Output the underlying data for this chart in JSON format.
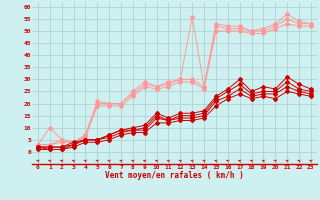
{
  "bg_color": "#cff0f0",
  "grid_color": "#aacccc",
  "xlabel": "Vent moyen/en rafales ( km/h )",
  "xlabel_color": "#cc0000",
  "tick_color": "#cc0000",
  "x_ticks": [
    0,
    1,
    2,
    3,
    4,
    5,
    6,
    7,
    8,
    9,
    10,
    11,
    12,
    13,
    14,
    15,
    16,
    17,
    18,
    19,
    20,
    21,
    22,
    23
  ],
  "y_ticks": [
    0,
    5,
    10,
    15,
    20,
    25,
    30,
    35,
    40,
    45,
    50,
    55,
    60
  ],
  "ylim": [
    -5,
    62
  ],
  "xlim": [
    -0.5,
    23.5
  ],
  "series_light": [
    [
      3,
      10,
      5,
      4,
      7,
      21,
      20,
      20,
      25,
      29,
      27,
      29,
      30,
      56,
      27,
      53,
      52,
      52,
      50,
      51,
      53,
      57,
      54,
      53
    ],
    [
      3,
      3,
      5,
      4,
      7,
      20,
      20,
      20,
      24,
      28,
      27,
      28,
      30,
      30,
      27,
      52,
      51,
      51,
      50,
      50,
      52,
      55,
      53,
      53
    ],
    [
      3,
      3,
      4,
      4,
      6,
      19,
      19,
      19,
      23,
      27,
      26,
      27,
      29,
      29,
      26,
      50,
      50,
      50,
      49,
      49,
      51,
      53,
      52,
      52
    ]
  ],
  "series_dark": [
    [
      2,
      2,
      2,
      4,
      5,
      5,
      7,
      9,
      10,
      11,
      16,
      14,
      16,
      16,
      17,
      23,
      26,
      30,
      25,
      27,
      26,
      31,
      28,
      26
    ],
    [
      2,
      2,
      2,
      3,
      5,
      5,
      7,
      9,
      9,
      10,
      15,
      13,
      15,
      15,
      16,
      22,
      25,
      28,
      24,
      25,
      25,
      29,
      26,
      25
    ],
    [
      2,
      1,
      1,
      3,
      5,
      5,
      6,
      8,
      9,
      9,
      14,
      13,
      14,
      14,
      15,
      21,
      23,
      26,
      23,
      24,
      24,
      27,
      25,
      24
    ],
    [
      1,
      1,
      1,
      2,
      4,
      4,
      5,
      7,
      8,
      8,
      12,
      12,
      13,
      13,
      14,
      19,
      22,
      24,
      22,
      23,
      22,
      25,
      24,
      23
    ]
  ],
  "light_color": "#ff9999",
  "dark_color": "#cc0000",
  "lw": 0.7,
  "ms": 2.0
}
